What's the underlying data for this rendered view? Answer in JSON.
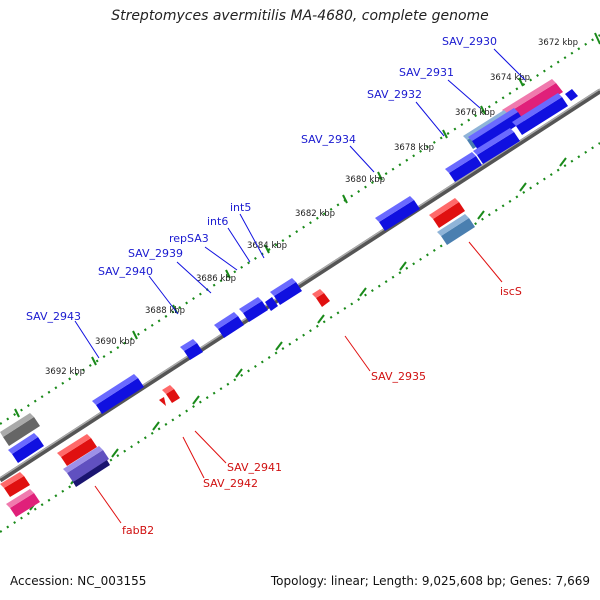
{
  "title": "Streptomyces avermitilis MA-4680, complete genome",
  "footer": {
    "accession": "Accession: NC_003155",
    "summary": "Topology: linear; Length: 9,025,608 bp; Genes: 7,669"
  },
  "colors": {
    "forward_gene": "#1010e0",
    "reverse_gene": "#e01010",
    "rna_pink": "#e0207a",
    "steelblue": "#4a7fb0",
    "dark_navy": "#1a1470",
    "violet": "#6050c0",
    "grey": "#666666",
    "scale_tick": "#1a8a1a",
    "label_forward": "#1a1ad0",
    "label_reverse": "#d01010",
    "backbone": "#666666"
  },
  "scale_labels": [
    "3672 kbp",
    "3674 kbp",
    "3676 kbp",
    "3678 kbp",
    "3680 kbp",
    "3682 kbp",
    "3684 kbp",
    "3686 kbp",
    "3688 kbp",
    "3690 kbp",
    "3692 kbp"
  ],
  "forward_labels": [
    "SAV_2930",
    "SAV_2931",
    "SAV_2932",
    "SAV_2934",
    "int5",
    "int6",
    "repSA3",
    "SAV_2939",
    "SAV_2940",
    "SAV_2943"
  ],
  "reverse_labels": [
    "iscS",
    "SAV_2935",
    "SAV_2941",
    "SAV_2942",
    "fabB2"
  ]
}
